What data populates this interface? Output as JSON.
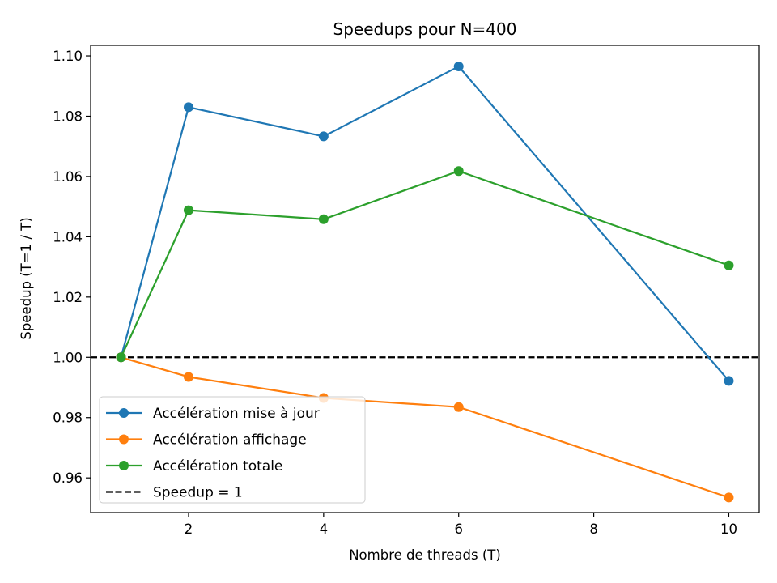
{
  "chart_data": {
    "type": "line",
    "title": "Speedups pour N=400",
    "xlabel": "Nombre de threads (T)",
    "ylabel": "Speedup (T=1 / T)",
    "xlim": [
      0.55,
      10.45
    ],
    "ylim": [
      0.9485,
      1.1035
    ],
    "xticks": [
      2,
      4,
      6,
      8,
      10
    ],
    "yticks": [
      0.96,
      0.98,
      1.0,
      1.02,
      1.04,
      1.06,
      1.08,
      1.1
    ],
    "ytick_labels": [
      "0.96",
      "0.98",
      "1.00",
      "1.02",
      "1.04",
      "1.06",
      "1.08",
      "1.10"
    ],
    "grid": false,
    "legend_position": "lower-left",
    "x": [
      1,
      2,
      4,
      6,
      10
    ],
    "series": [
      {
        "name": "Accélération mise à jour",
        "color": "#1f77b4",
        "values": [
          1.0,
          1.083,
          1.0733,
          1.0965,
          0.9922
        ]
      },
      {
        "name": "Accélération affichage",
        "color": "#ff7f0e",
        "values": [
          1.0,
          0.9935,
          0.9865,
          0.9835,
          0.9535
        ]
      },
      {
        "name": "Accélération totale",
        "color": "#2ca02c",
        "values": [
          1.0,
          1.0488,
          1.0458,
          1.0618,
          1.0305
        ]
      }
    ],
    "reference_line": {
      "name": "Speedup = 1",
      "y": 1.0,
      "color": "#000000",
      "style": "dashed"
    }
  }
}
